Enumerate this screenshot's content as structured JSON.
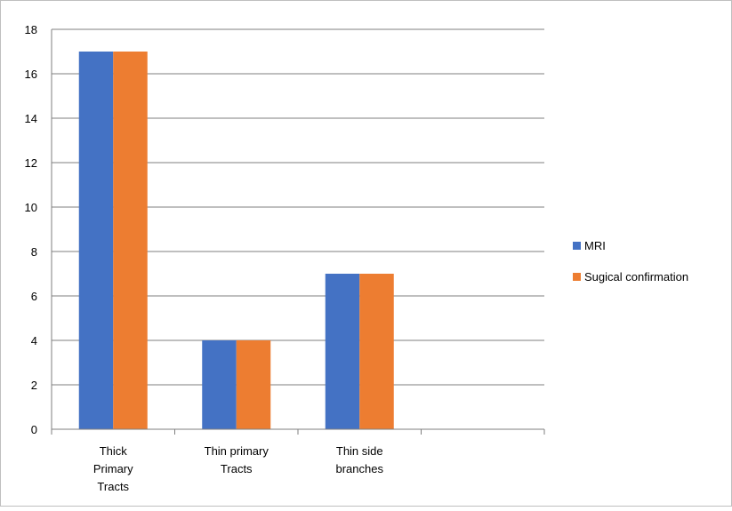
{
  "chart_data": {
    "type": "bar",
    "title": "",
    "xlabel": "",
    "ylabel": "",
    "categories": [
      [
        "Thick",
        "Primary",
        "Tracts"
      ],
      [
        "Thin primary",
        "Tracts"
      ],
      [
        "Thin side",
        "branches"
      ],
      [
        ""
      ]
    ],
    "series": [
      {
        "name": "MRI",
        "color": "#4472c4",
        "values": [
          17,
          4,
          7,
          null
        ]
      },
      {
        "name": "Sugical confirmation",
        "color": "#ed7d31",
        "values": [
          17,
          4,
          7,
          null
        ]
      }
    ],
    "ylim": [
      0,
      18
    ],
    "yticks": [
      "0",
      "2",
      "4",
      "6",
      "8",
      "10",
      "12",
      "14",
      "16",
      "18"
    ],
    "grid": true,
    "legend": "right"
  }
}
